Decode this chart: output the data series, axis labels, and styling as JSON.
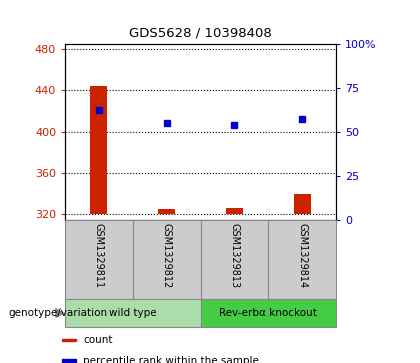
{
  "title": "GDS5628 / 10398408",
  "samples": [
    "GSM1329811",
    "GSM1329812",
    "GSM1329813",
    "GSM1329814"
  ],
  "counts": [
    444,
    325,
    326,
    340
  ],
  "percentile_ranks": [
    62,
    55,
    54,
    57
  ],
  "ylim_left": [
    315,
    485
  ],
  "ylim_right": [
    0,
    100
  ],
  "yticks_left": [
    320,
    360,
    400,
    440,
    480
  ],
  "yticks_right": [
    0,
    25,
    50,
    75,
    100
  ],
  "bar_color": "#cc2200",
  "dot_color": "#0000cc",
  "bar_bottom": 320,
  "groups": [
    {
      "label": "wild type",
      "samples": [
        0,
        1
      ],
      "color": "#aaddaa"
    },
    {
      "label": "Rev-erbα knockout",
      "samples": [
        2,
        3
      ],
      "color": "#44cc44"
    }
  ],
  "group_label": "genotype/variation",
  "legend_items": [
    {
      "color": "#cc2200",
      "label": "count"
    },
    {
      "color": "#0000cc",
      "label": "percentile rank within the sample"
    }
  ],
  "axis_left_color": "#cc2200",
  "axis_right_color": "#0000cc",
  "sample_box_color": "#cccccc",
  "bar_width": 0.25
}
